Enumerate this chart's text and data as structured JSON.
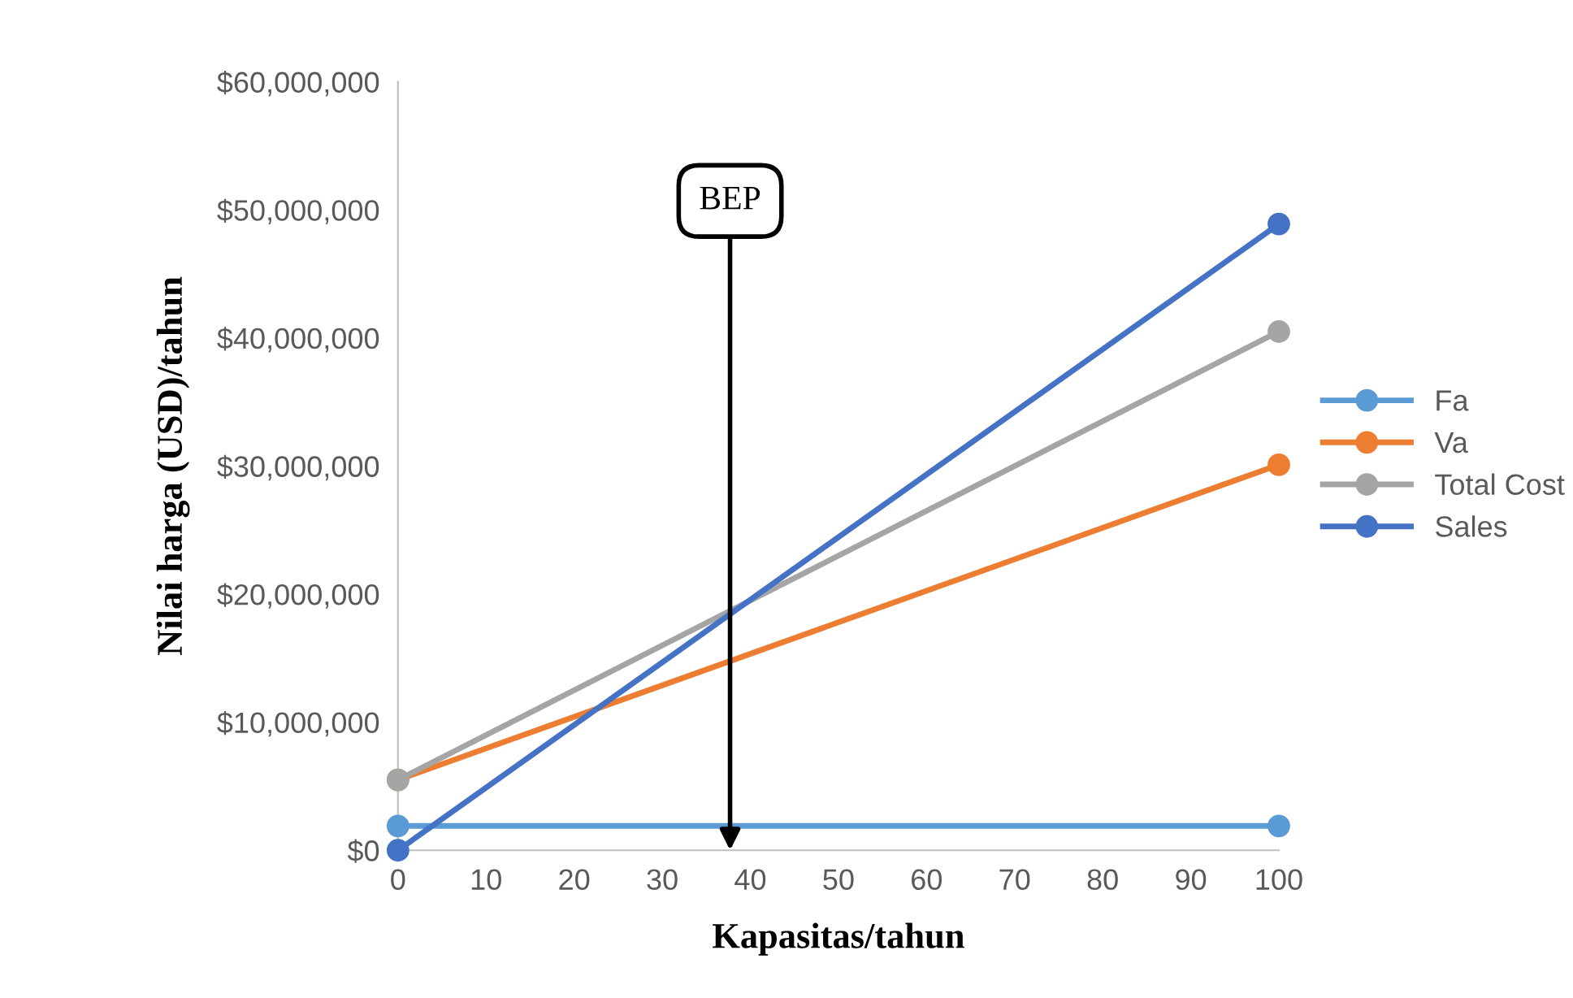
{
  "chart_data": {
    "type": "line",
    "xlabel": "Kapasitas/tahun",
    "ylabel": "Nilai harga (USD)/tahun",
    "x": [
      0,
      100
    ],
    "series": [
      {
        "name": "Fa",
        "color": "#5b9bd5",
        "values": [
          1900000,
          1900000
        ]
      },
      {
        "name": "Va",
        "color": "#ed7d31",
        "values": [
          5500000,
          30100000
        ]
      },
      {
        "name": "Total Cost",
        "color": "#a5a5a5",
        "values": [
          5500000,
          40500000
        ]
      },
      {
        "name": "Sales",
        "color": "#4472c4",
        "values": [
          0,
          48900000
        ]
      }
    ],
    "xlim": [
      0,
      100
    ],
    "xticks": [
      0,
      10,
      20,
      30,
      40,
      50,
      60,
      70,
      80,
      90,
      100
    ],
    "ylim": [
      0,
      60000000
    ],
    "yticks": [
      {
        "value": 0,
        "label": "$0"
      },
      {
        "value": 10000000,
        "label": "$10,000,000"
      },
      {
        "value": 20000000,
        "label": "$20,000,000"
      },
      {
        "value": 30000000,
        "label": "$30,000,000"
      },
      {
        "value": 40000000,
        "label": "$40,000,000"
      },
      {
        "value": 50000000,
        "label": "$50,000,000"
      },
      {
        "value": 60000000,
        "label": "$60,000,000"
      }
    ],
    "annotations": [
      "BEP"
    ],
    "grid": false,
    "legend": "right",
    "marker": "circle",
    "line_style": "solid"
  }
}
